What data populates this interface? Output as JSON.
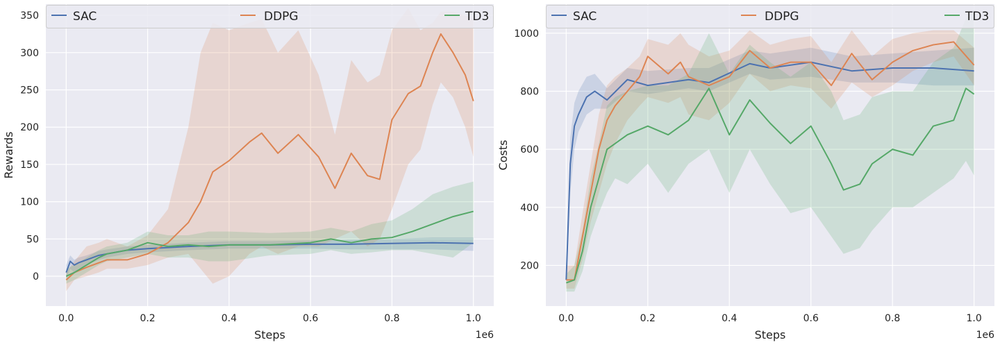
{
  "chart_data": [
    {
      "type": "line",
      "xlabel": "Steps",
      "ylabel": "Rewards",
      "x_offset_label": "1e6",
      "xlim": [
        -0.05,
        1.05
      ],
      "ylim": [
        -40,
        365
      ],
      "xticks": [
        0.0,
        0.2,
        0.4,
        0.6,
        0.8,
        1.0
      ],
      "xtick_labels": [
        "0.0",
        "0.2",
        "0.4",
        "0.6",
        "0.8",
        "1.0"
      ],
      "yticks": [
        0,
        50,
        100,
        150,
        200,
        250,
        300,
        350
      ],
      "ytick_labels": [
        "0",
        "50",
        "100",
        "150",
        "200",
        "250",
        "300",
        "350"
      ],
      "grid": true,
      "legend": "top, single row spanning plot width",
      "series": [
        {
          "name": "SAC",
          "color": "#4c72b0",
          "x": [
            0,
            0.01,
            0.02,
            0.03,
            0.05,
            0.08,
            0.1,
            0.15,
            0.2,
            0.3,
            0.4,
            0.5,
            0.6,
            0.7,
            0.8,
            0.9,
            1.0
          ],
          "mean": [
            5,
            20,
            15,
            18,
            22,
            28,
            30,
            35,
            37,
            40,
            42,
            42,
            43,
            43,
            44,
            45,
            44
          ],
          "lower": [
            -5,
            10,
            5,
            10,
            15,
            22,
            25,
            30,
            32,
            35,
            37,
            37,
            37,
            36,
            36,
            36,
            34
          ],
          "upper": [
            15,
            28,
            22,
            25,
            28,
            34,
            36,
            40,
            42,
            45,
            47,
            47,
            48,
            49,
            50,
            52,
            52
          ]
        },
        {
          "name": "DDPG",
          "color": "#dd8452",
          "x": [
            0,
            0.02,
            0.05,
            0.08,
            0.1,
            0.15,
            0.2,
            0.25,
            0.3,
            0.33,
            0.36,
            0.4,
            0.45,
            0.48,
            0.52,
            0.57,
            0.62,
            0.66,
            0.7,
            0.74,
            0.77,
            0.8,
            0.84,
            0.87,
            0.9,
            0.92,
            0.95,
            0.98,
            1.0
          ],
          "mean": [
            -5,
            5,
            12,
            18,
            22,
            22,
            30,
            45,
            72,
            100,
            140,
            155,
            180,
            192,
            165,
            190,
            160,
            118,
            165,
            135,
            130,
            210,
            245,
            255,
            300,
            325,
            300,
            270,
            235
          ],
          "lower": [
            -20,
            -5,
            0,
            5,
            10,
            10,
            15,
            25,
            30,
            10,
            -10,
            0,
            30,
            40,
            30,
            40,
            40,
            50,
            60,
            40,
            50,
            90,
            150,
            170,
            230,
            260,
            240,
            200,
            160
          ],
          "upper": [
            5,
            20,
            40,
            45,
            50,
            40,
            55,
            90,
            200,
            300,
            340,
            330,
            340,
            345,
            300,
            330,
            270,
            190,
            290,
            260,
            270,
            330,
            360,
            330,
            340,
            355,
            355,
            350,
            345
          ]
        },
        {
          "name": "TD3",
          "color": "#55a868",
          "x": [
            0,
            0.02,
            0.05,
            0.08,
            0.1,
            0.15,
            0.2,
            0.25,
            0.3,
            0.35,
            0.4,
            0.5,
            0.6,
            0.65,
            0.7,
            0.75,
            0.8,
            0.85,
            0.9,
            0.95,
            1.0
          ],
          "mean": [
            0,
            5,
            15,
            25,
            30,
            35,
            45,
            40,
            42,
            40,
            42,
            42,
            45,
            50,
            45,
            50,
            52,
            60,
            70,
            80,
            87
          ],
          "lower": [
            -10,
            -5,
            5,
            15,
            20,
            25,
            30,
            25,
            25,
            20,
            20,
            28,
            30,
            35,
            30,
            32,
            35,
            35,
            30,
            25,
            45
          ],
          "upper": [
            10,
            15,
            25,
            35,
            40,
            45,
            60,
            55,
            55,
            60,
            60,
            58,
            60,
            65,
            60,
            70,
            75,
            90,
            110,
            120,
            127
          ]
        }
      ]
    },
    {
      "type": "line",
      "xlabel": "Steps",
      "ylabel": "Costs",
      "x_offset_label": "1e6",
      "xlim": [
        -0.05,
        1.05
      ],
      "ylim": [
        60,
        1100
      ],
      "xticks": [
        0.0,
        0.2,
        0.4,
        0.6,
        0.8,
        1.0
      ],
      "xtick_labels": [
        "0.0",
        "0.2",
        "0.4",
        "0.6",
        "0.8",
        "1.0"
      ],
      "yticks": [
        200,
        400,
        600,
        800,
        1000
      ],
      "ytick_labels": [
        "200",
        "400",
        "600",
        "800",
        "1000"
      ],
      "grid": true,
      "legend": "top, single row spanning plot width",
      "series": [
        {
          "name": "SAC",
          "color": "#4c72b0",
          "x": [
            0,
            0.01,
            0.02,
            0.03,
            0.05,
            0.07,
            0.1,
            0.15,
            0.2,
            0.3,
            0.35,
            0.45,
            0.5,
            0.6,
            0.7,
            0.8,
            0.9,
            1.0
          ],
          "mean": [
            150,
            550,
            680,
            720,
            780,
            800,
            770,
            840,
            820,
            840,
            830,
            895,
            880,
            900,
            870,
            880,
            880,
            870
          ],
          "lower": [
            120,
            450,
            600,
            660,
            720,
            740,
            740,
            800,
            790,
            810,
            800,
            860,
            840,
            850,
            830,
            830,
            820,
            820
          ],
          "upper": [
            190,
            640,
            760,
            800,
            850,
            860,
            810,
            880,
            870,
            880,
            880,
            940,
            930,
            950,
            920,
            930,
            940,
            950
          ]
        },
        {
          "name": "DDPG",
          "color": "#dd8452",
          "x": [
            0,
            0.02,
            0.04,
            0.06,
            0.08,
            0.1,
            0.12,
            0.15,
            0.18,
            0.2,
            0.25,
            0.28,
            0.3,
            0.35,
            0.4,
            0.45,
            0.5,
            0.55,
            0.6,
            0.65,
            0.7,
            0.75,
            0.8,
            0.85,
            0.9,
            0.95,
            1.0
          ],
          "mean": [
            150,
            150,
            300,
            450,
            600,
            700,
            750,
            800,
            850,
            920,
            860,
            900,
            850,
            820,
            850,
            940,
            880,
            900,
            900,
            820,
            930,
            840,
            900,
            940,
            960,
            970,
            890
          ],
          "lower": [
            120,
            120,
            220,
            350,
            450,
            550,
            620,
            700,
            750,
            780,
            760,
            780,
            720,
            700,
            760,
            860,
            800,
            820,
            810,
            740,
            830,
            780,
            820,
            870,
            900,
            920,
            820
          ],
          "upper": [
            200,
            200,
            380,
            550,
            720,
            820,
            850,
            880,
            920,
            980,
            960,
            1000,
            960,
            920,
            940,
            1010,
            960,
            980,
            990,
            900,
            1010,
            920,
            980,
            1000,
            1010,
            1010,
            950
          ]
        },
        {
          "name": "TD3",
          "color": "#55a868",
          "x": [
            0,
            0.02,
            0.04,
            0.06,
            0.08,
            0.1,
            0.12,
            0.15,
            0.2,
            0.25,
            0.3,
            0.35,
            0.4,
            0.45,
            0.5,
            0.55,
            0.6,
            0.65,
            0.68,
            0.72,
            0.75,
            0.8,
            0.85,
            0.9,
            0.95,
            0.98,
            1.0
          ],
          "mean": [
            140,
            150,
            250,
            400,
            500,
            600,
            620,
            650,
            680,
            650,
            700,
            810,
            650,
            770,
            690,
            620,
            680,
            550,
            460,
            480,
            550,
            600,
            580,
            680,
            700,
            810,
            790
          ],
          "lower": [
            110,
            110,
            180,
            300,
            380,
            450,
            500,
            480,
            550,
            450,
            550,
            600,
            450,
            600,
            480,
            380,
            400,
            300,
            240,
            260,
            320,
            400,
            400,
            450,
            500,
            560,
            510
          ],
          "upper": [
            170,
            200,
            320,
            500,
            620,
            750,
            780,
            800,
            820,
            820,
            860,
            1000,
            860,
            960,
            900,
            850,
            900,
            800,
            700,
            720,
            780,
            800,
            800,
            900,
            950,
            1050,
            1080
          ]
        }
      ]
    }
  ]
}
